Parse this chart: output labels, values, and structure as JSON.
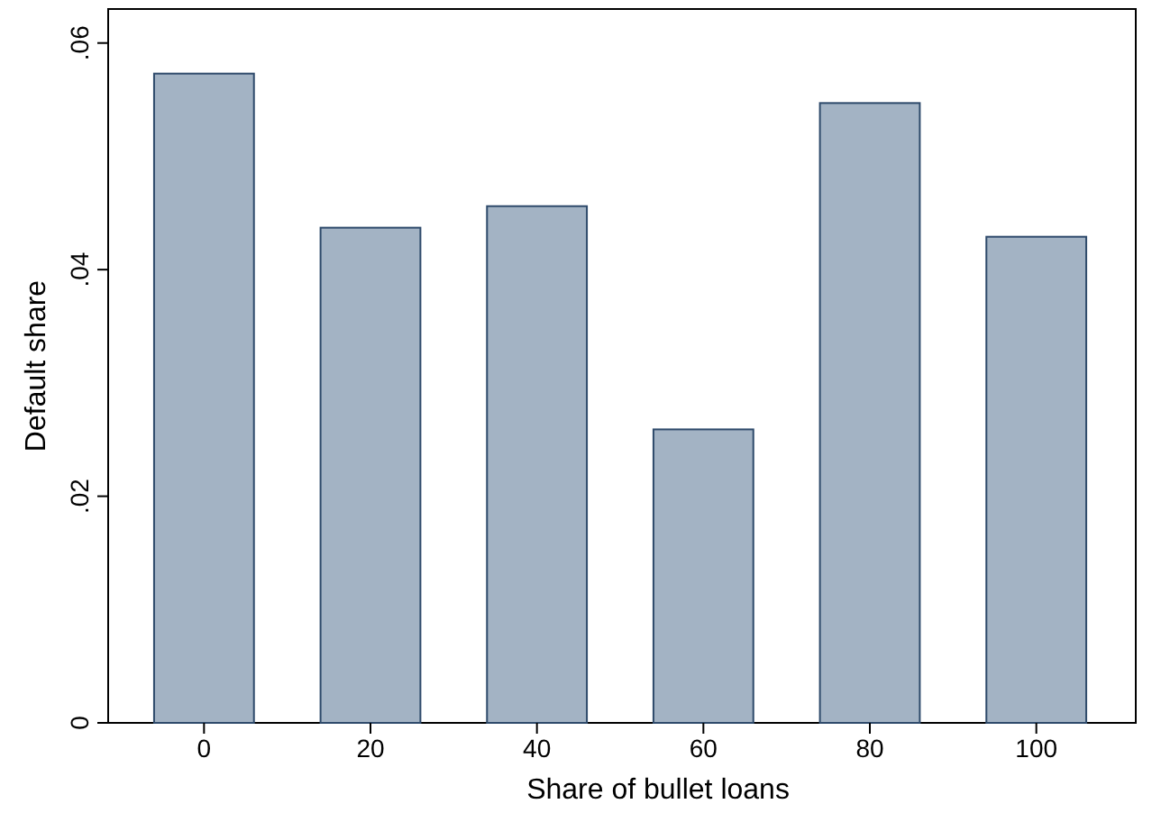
{
  "chart_data": {
    "type": "bar",
    "xlabel": "Share of bullet loans",
    "ylabel": "Default share",
    "categories": [
      "0",
      "20",
      "40",
      "60",
      "80",
      "100"
    ],
    "values": [
      0.0573,
      0.0437,
      0.0456,
      0.0259,
      0.0547,
      0.0429
    ],
    "color": "#a3b3c4",
    "ylim": [
      0,
      0.063
    ],
    "yticks": [
      {
        "value": 0,
        "label": "0"
      },
      {
        "value": 0.02,
        "label": ".02"
      },
      {
        "value": 0.04,
        "label": ".04"
      },
      {
        "value": 0.06,
        "label": ".06"
      }
    ],
    "grid": false
  }
}
